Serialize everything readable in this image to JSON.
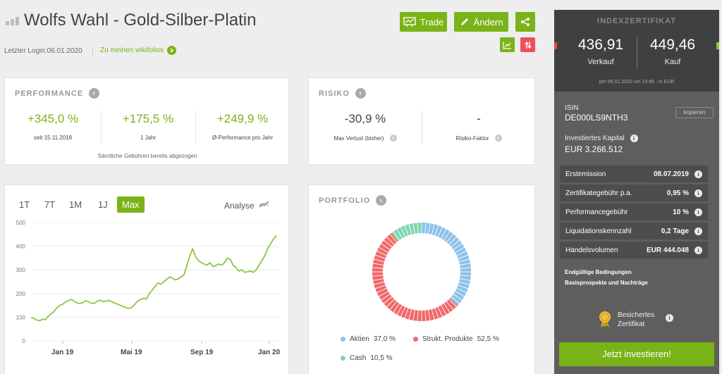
{
  "header": {
    "title": "Wolfs Wahl - Gold-Silber-Platin",
    "last_login_label": "Letzter Login:",
    "last_login_date": "06.01.2020",
    "wikifolios_link": "Zu meinen wikifolios",
    "trade_label": "Trade",
    "edit_label": "Ändern"
  },
  "performance": {
    "title": "PERFORMANCE",
    "metrics": [
      {
        "value": "+345,0 %",
        "label": "seit 15.11.2018"
      },
      {
        "value": "+175,5 %",
        "label": "1 Jahr"
      },
      {
        "value": "+249,9 %",
        "label": "Ø-Performance pro Jahr"
      }
    ],
    "footnote": "Sämtliche Gebühren bereits abgezogen"
  },
  "risk": {
    "title": "RISIKO",
    "metrics": [
      {
        "value": "-30,9 %",
        "label": "Max Verlust (bisher)"
      },
      {
        "value": "-",
        "label": "Risiko-Faktor"
      }
    ]
  },
  "chart_tabs": [
    "1T",
    "7T",
    "1M",
    "1J",
    "Max"
  ],
  "chart_active_tab": "Max",
  "analyse_label": "Analyse",
  "chart_data": {
    "type": "line",
    "title": "",
    "xlabel": "",
    "ylabel": "",
    "ylim": [
      0,
      500
    ],
    "yticks": [
      0,
      100,
      200,
      300,
      400,
      500
    ],
    "xticks": [
      "Jan 19",
      "Mai 19",
      "Sep 19",
      "Jan 20"
    ],
    "grid": true,
    "color": "#8cc63f",
    "series": [
      {
        "values": [
          100,
          95,
          88,
          85,
          92,
          90,
          105,
          115,
          125,
          140,
          150,
          155,
          165,
          170,
          175,
          168,
          160,
          158,
          162,
          170,
          165,
          158,
          160,
          168,
          172,
          166,
          168,
          172,
          165,
          160,
          155,
          150,
          145,
          140,
          138,
          142,
          155,
          170,
          175,
          180,
          178,
          200,
          215,
          230,
          245,
          240,
          250,
          260,
          270,
          265,
          258,
          262,
          270,
          280,
          320,
          360,
          390,
          355,
          340,
          330,
          325,
          320,
          330,
          315,
          318,
          325,
          320,
          330,
          350,
          345,
          320,
          310,
          295,
          300,
          290,
          292,
          295,
          290,
          300,
          320,
          340,
          360,
          390,
          410,
          430,
          445
        ]
      }
    ]
  },
  "portfolio": {
    "title": "PORTFOLIO",
    "segments": [
      {
        "name": "Aktien",
        "value": 37.0,
        "label": "37,0 %",
        "color": "#8cc1e8"
      },
      {
        "name": "Strukt. Produkte",
        "value": 52.5,
        "label": "52,5 %",
        "color": "#f06868"
      },
      {
        "name": "Cash",
        "value": 10.5,
        "label": "10,5 %",
        "color": "#7fd6b2"
      }
    ]
  },
  "sidebar": {
    "header": "INDEXZERTIFIKAT",
    "sell_price": "436,91",
    "sell_label": "Verkauf",
    "buy_price": "449,46",
    "buy_label": "Kauf",
    "timestamp": "per 06.01.2020 um 13:46 - in EUR",
    "isin_label": "ISIN",
    "isin": "DE000LS9NTH3",
    "copy_label": "kopieren",
    "capital_label": "Investiertes Kapital",
    "capital_value": "EUR 3.266.512",
    "rows": [
      {
        "label": "Erstemission",
        "value": "08.07.2019"
      },
      {
        "label": "Zertifikategebühr p.a.",
        "value": "0,95 %"
      },
      {
        "label": "Performancegebühr",
        "value": "10 %"
      },
      {
        "label": "Liquidationskennzahl",
        "value": "0,2 Tage"
      },
      {
        "label": "Handelsvolumen",
        "value": "EUR 444.048"
      }
    ],
    "link1": "Endgültige Bedingungen",
    "link2": "Basisprospekte und Nachträge",
    "secured_line1": "Besichertes",
    "secured_line2": "Zertifikat",
    "invest_label": "Jetzt investieren!",
    "colors": {
      "accent": "#7ab317",
      "panel": "#5e5e5e",
      "panel_top": "#3f4141"
    }
  }
}
